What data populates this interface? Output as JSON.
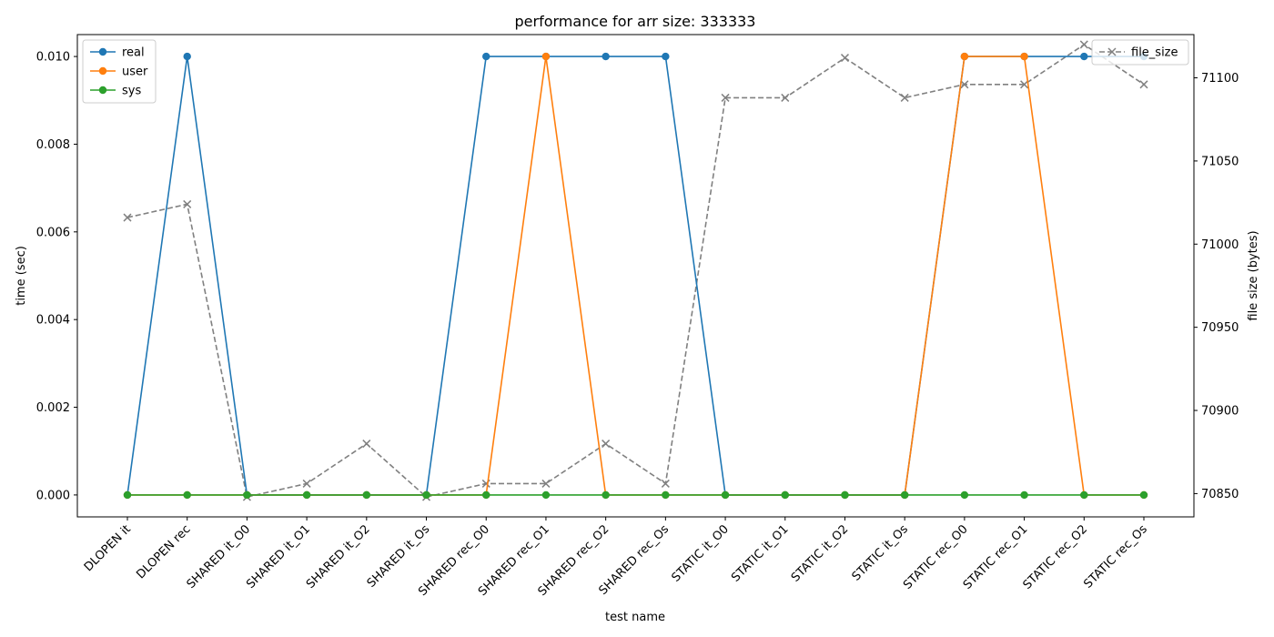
{
  "chart_data": {
    "type": "line",
    "title": "performance for arr size: 333333",
    "xlabel": "test name",
    "ylabel": "time (sec)",
    "y2label": "file size (bytes)",
    "categories": [
      "DLOPEN it",
      "DLOPEN rec",
      "SHARED it_O0",
      "SHARED it_O1",
      "SHARED it_O2",
      "SHARED it_Os",
      "SHARED rec_O0",
      "SHARED rec_O1",
      "SHARED rec_O2",
      "SHARED rec_Os",
      "STATIC it_O0",
      "STATIC it_O1",
      "STATIC it_O2",
      "STATIC it_Os",
      "STATIC rec_O0",
      "STATIC rec_O1",
      "STATIC rec_O2",
      "STATIC rec_Os"
    ],
    "ylim": [
      -0.0005,
      0.0105
    ],
    "y2lim": [
      70836,
      71126
    ],
    "yticks": [
      "0.000",
      "0.002",
      "0.004",
      "0.006",
      "0.008",
      "0.010"
    ],
    "y2ticks": [
      "70850",
      "70900",
      "70950",
      "71000",
      "71050",
      "71100"
    ],
    "series": [
      {
        "name": "real",
        "axis": "left",
        "color": "#1f77b4",
        "marker": "circle",
        "values": [
          0.0,
          0.01,
          0.0,
          0.0,
          0.0,
          0.0,
          0.01,
          0.01,
          0.01,
          0.01,
          0.0,
          0.0,
          0.0,
          0.0,
          0.01,
          0.01,
          0.01,
          0.01
        ]
      },
      {
        "name": "user",
        "axis": "left",
        "color": "#ff7f0e",
        "marker": "circle",
        "values": [
          0.0,
          0.0,
          0.0,
          0.0,
          0.0,
          0.0,
          0.0,
          0.01,
          0.0,
          0.0,
          0.0,
          0.0,
          0.0,
          0.0,
          0.01,
          0.01,
          0.0,
          0.0
        ]
      },
      {
        "name": "sys",
        "axis": "left",
        "color": "#2ca02c",
        "marker": "circle",
        "values": [
          0.0,
          0.0,
          0.0,
          0.0,
          0.0,
          0.0,
          0.0,
          0.0,
          0.0,
          0.0,
          0.0,
          0.0,
          0.0,
          0.0,
          0.0,
          0.0,
          0.0,
          0.0
        ]
      },
      {
        "name": "file_size",
        "axis": "right",
        "color": "#808080",
        "marker": "x",
        "dashed": true,
        "values": [
          71016,
          71024,
          70848,
          70856,
          70880,
          70848,
          70856,
          70856,
          70880,
          70856,
          71088,
          71088,
          71112,
          71088,
          71096,
          71096,
          71120,
          71096
        ]
      }
    ],
    "legend_left": [
      "real",
      "user",
      "sys"
    ],
    "legend_right": [
      "file_size"
    ],
    "legend_placement": [
      "top-left",
      "top-right"
    ],
    "grid": false
  }
}
